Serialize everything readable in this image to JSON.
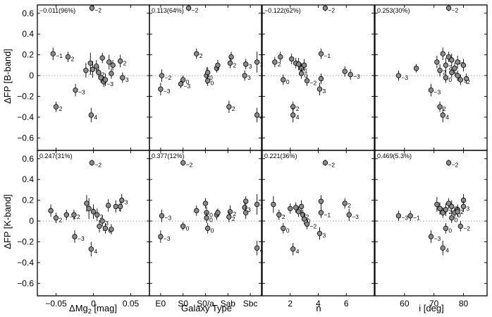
{
  "chart_data": {
    "type": "scatter",
    "ylabels": [
      "ΔFP [B-band]",
      "ΔFP [K-band]"
    ],
    "yticks": [
      "0.6",
      "0.4",
      "0.2",
      "0",
      "−0.2",
      "−0.4",
      "−0.6"
    ],
    "ylim": [
      -0.72,
      0.68
    ],
    "columns": [
      {
        "xlabel": "ΔMg",
        "xlabel_sub": "2",
        "xlabel_unit": " [mag]",
        "xlim": [
          -0.075,
          0.075
        ],
        "xticks": [
          {
            "v": -0.05,
            "t": "−0.05"
          },
          {
            "v": 0,
            "t": "0"
          },
          {
            "v": 0.05,
            "t": "0.05"
          }
        ]
      },
      {
        "xlabel": "Galaxy Type",
        "xlim": [
          -1,
          9
        ],
        "xticks": [
          {
            "v": 0,
            "t": "E0"
          },
          {
            "v": 2,
            "t": "S0"
          },
          {
            "v": 4,
            "t": "S0/a"
          },
          {
            "v": 6,
            "t": "Sab"
          },
          {
            "v": 8,
            "t": "Sbc"
          }
        ]
      },
      {
        "xlabel": "n",
        "xlim": [
          0,
          8
        ],
        "xticks": [
          {
            "v": 2,
            "t": "2"
          },
          {
            "v": 4,
            "t": "4"
          },
          {
            "v": 6,
            "t": "6"
          }
        ]
      },
      {
        "xlabel": "i [deg]",
        "xlim": [
          50,
          88
        ],
        "xticks": [
          {
            "v": 60,
            "t": "60"
          },
          {
            "v": 70,
            "t": "70"
          },
          {
            "v": 80,
            "t": "80"
          }
        ]
      }
    ],
    "panels": [
      {
        "band": "B",
        "col": 0,
        "corr": "−0.011(96%)",
        "points": [
          {
            "x": -0.054,
            "y": 0.21,
            "e": 0.06,
            "l": "−1"
          },
          {
            "x": -0.034,
            "y": 0.18,
            "e": 0.05,
            "l": "2"
          },
          {
            "x": -0.05,
            "y": -0.3,
            "e": 0.05,
            "l": "2"
          },
          {
            "x": -0.024,
            "y": -0.14,
            "e": 0.06,
            "l": "−3"
          },
          {
            "x": -0.003,
            "y": -0.38,
            "e": 0.07,
            "l": "4"
          },
          {
            "x": -0.002,
            "y": 0.65,
            "e": 0.03,
            "l": "−2"
          },
          {
            "x": -0.01,
            "y": 0.05,
            "e": 0.07,
            "l": "1"
          },
          {
            "x": -0.004,
            "y": 0.12,
            "e": 0.1,
            "l": ""
          },
          {
            "x": -0.001,
            "y": 0.06,
            "e": 0.08,
            "l": "3"
          },
          {
            "x": 0.004,
            "y": 0.09,
            "e": 0.06,
            "l": ""
          },
          {
            "x": 0.007,
            "y": 0.03,
            "e": 0.06,
            "l": "2"
          },
          {
            "x": 0.01,
            "y": -0.02,
            "e": 0.05,
            "l": "0"
          },
          {
            "x": 0.014,
            "y": -0.06,
            "e": 0.05,
            "l": "−3"
          },
          {
            "x": 0.012,
            "y": 0.17,
            "e": 0.05,
            "l": ""
          },
          {
            "x": 0.016,
            "y": -0.04,
            "e": 0.06,
            "l": ""
          },
          {
            "x": 0.021,
            "y": 0.13,
            "e": 0.07,
            "l": ""
          },
          {
            "x": 0.026,
            "y": 0.1,
            "e": 0.05,
            "l": ""
          },
          {
            "x": 0.036,
            "y": 0.14,
            "e": 0.06,
            "l": "2"
          },
          {
            "x": 0.039,
            "y": -0.02,
            "e": 0.05,
            "l": "3"
          },
          {
            "x": 0.024,
            "y": 0.02,
            "e": 0.05,
            "l": ""
          }
        ]
      },
      {
        "band": "B",
        "col": 1,
        "corr": "0.113(64%)",
        "points": [
          {
            "x": 2.5,
            "y": 0.65,
            "e": 0.03,
            "l": "−2"
          },
          {
            "x": 0.1,
            "y": 0.0,
            "e": 0.06,
            "l": "−2"
          },
          {
            "x": 0.0,
            "y": -0.13,
            "e": 0.06,
            "l": "−3"
          },
          {
            "x": 2.0,
            "y": -0.04,
            "e": 0.04,
            "l": "0"
          },
          {
            "x": 1.8,
            "y": -0.08,
            "e": 0.04,
            "l": "−3"
          },
          {
            "x": 3.2,
            "y": 0.21,
            "e": 0.05,
            "l": "2"
          },
          {
            "x": 4.1,
            "y": 0.0,
            "e": 0.08,
            "l": "0"
          },
          {
            "x": 4.2,
            "y": 0.03,
            "e": 0.05,
            "l": ""
          },
          {
            "x": 4.2,
            "y": -0.05,
            "e": 0.05,
            "l": "0"
          },
          {
            "x": 5.0,
            "y": 0.07,
            "e": 0.04,
            "l": ""
          },
          {
            "x": 5.1,
            "y": 0.1,
            "e": 0.05,
            "l": ""
          },
          {
            "x": 6.3,
            "y": 0.18,
            "e": 0.05,
            "l": ""
          },
          {
            "x": 6.2,
            "y": 0.12,
            "e": 0.05,
            "l": "2"
          },
          {
            "x": 6.1,
            "y": -0.3,
            "e": 0.06,
            "l": "2"
          },
          {
            "x": 7.6,
            "y": 0.11,
            "e": 0.05,
            "l": "3"
          },
          {
            "x": 7.5,
            "y": 0.0,
            "e": 0.05,
            "l": "3"
          },
          {
            "x": 8.6,
            "y": 0.13,
            "e": 0.1,
            "l": "1"
          },
          {
            "x": 8.6,
            "y": -0.38,
            "e": 0.07,
            "l": "4"
          }
        ]
      },
      {
        "band": "B",
        "col": 2,
        "corr": "−0.122(62%)",
        "points": [
          {
            "x": 4.5,
            "y": 0.65,
            "e": 0.03,
            "l": "−2"
          },
          {
            "x": 0.9,
            "y": 0.13,
            "e": 0.05,
            "l": "2"
          },
          {
            "x": 1.3,
            "y": 0.18,
            "e": 0.05,
            "l": ""
          },
          {
            "x": 1.5,
            "y": -0.04,
            "e": 0.05,
            "l": "0"
          },
          {
            "x": 2.2,
            "y": -0.3,
            "e": 0.05,
            "l": "2"
          },
          {
            "x": 2.2,
            "y": -0.38,
            "e": 0.07,
            "l": "4"
          },
          {
            "x": 2.1,
            "y": 0.16,
            "e": 0.05,
            "l": ""
          },
          {
            "x": 2.4,
            "y": 0.12,
            "e": 0.05,
            "l": ""
          },
          {
            "x": 2.6,
            "y": 0.11,
            "e": 0.06,
            "l": ""
          },
          {
            "x": 2.8,
            "y": 0.07,
            "e": 0.05,
            "l": "1"
          },
          {
            "x": 2.8,
            "y": 0.02,
            "e": 0.05,
            "l": "0"
          },
          {
            "x": 3.2,
            "y": -0.05,
            "e": 0.05,
            "l": "−2"
          },
          {
            "x": 3.0,
            "y": 0.1,
            "e": 0.06,
            "l": ""
          },
          {
            "x": 4.2,
            "y": 0.21,
            "e": 0.05,
            "l": "−1"
          },
          {
            "x": 4.2,
            "y": -0.03,
            "e": 0.05,
            "l": ""
          },
          {
            "x": 4.1,
            "y": -0.13,
            "e": 0.06,
            "l": "3"
          },
          {
            "x": 5.9,
            "y": 0.04,
            "e": 0.05,
            "l": ""
          },
          {
            "x": 6.3,
            "y": 0.01,
            "e": 0.05,
            "l": "−3"
          }
        ]
      },
      {
        "band": "B",
        "col": 3,
        "corr": "0.253(30%)",
        "points": [
          {
            "x": 75,
            "y": 0.65,
            "e": 0.03,
            "l": "−2"
          },
          {
            "x": 58,
            "y": 0.0,
            "e": 0.05,
            "l": "−3"
          },
          {
            "x": 64,
            "y": 0.07,
            "e": 0.04,
            "l": ""
          },
          {
            "x": 69,
            "y": -0.14,
            "e": 0.06,
            "l": "−3"
          },
          {
            "x": 71,
            "y": 0.13,
            "e": 0.06,
            "l": ""
          },
          {
            "x": 72,
            "y": -0.3,
            "e": 0.05,
            "l": "2"
          },
          {
            "x": 73,
            "y": -0.38,
            "e": 0.07,
            "l": "4"
          },
          {
            "x": 72,
            "y": 0.05,
            "e": 0.06,
            "l": "2"
          },
          {
            "x": 73,
            "y": 0.21,
            "e": 0.06,
            "l": ""
          },
          {
            "x": 74,
            "y": 0.1,
            "e": 0.07,
            "l": "2"
          },
          {
            "x": 74,
            "y": -0.02,
            "e": 0.05,
            "l": "0"
          },
          {
            "x": 75,
            "y": 0.18,
            "e": 0.05,
            "l": ""
          },
          {
            "x": 76,
            "y": 0.15,
            "e": 0.06,
            "l": "−1"
          },
          {
            "x": 76,
            "y": 0.03,
            "e": 0.05,
            "l": "0"
          },
          {
            "x": 77,
            "y": 0.07,
            "e": 0.05,
            "l": ""
          },
          {
            "x": 78,
            "y": 0.13,
            "e": 0.06,
            "l": "3"
          },
          {
            "x": 79,
            "y": -0.04,
            "e": 0.05,
            "l": "−2"
          },
          {
            "x": 80,
            "y": 0.1,
            "e": 0.06,
            "l": ""
          },
          {
            "x": 81,
            "y": -0.03,
            "e": 0.05,
            "l": ""
          },
          {
            "x": 78,
            "y": 0.0,
            "e": 0.05,
            "l": ""
          }
        ]
      },
      {
        "band": "K",
        "col": 0,
        "corr": "0.247(31%)",
        "points": [
          {
            "x": -0.002,
            "y": 0.56,
            "e": 0.03,
            "l": "−2"
          },
          {
            "x": -0.057,
            "y": 0.1,
            "e": 0.06,
            "l": ""
          },
          {
            "x": -0.05,
            "y": 0.03,
            "e": 0.05,
            "l": "2"
          },
          {
            "x": -0.036,
            "y": 0.06,
            "e": 0.05,
            "l": "−1"
          },
          {
            "x": -0.026,
            "y": 0.06,
            "e": 0.05,
            "l": "2"
          },
          {
            "x": -0.025,
            "y": -0.15,
            "e": 0.06,
            "l": "−3"
          },
          {
            "x": -0.003,
            "y": -0.27,
            "e": 0.07,
            "l": "4"
          },
          {
            "x": -0.009,
            "y": 0.17,
            "e": 0.08,
            "l": ""
          },
          {
            "x": -0.006,
            "y": 0.12,
            "e": 0.1,
            "l": "3"
          },
          {
            "x": 0.0,
            "y": 0.09,
            "e": 0.07,
            "l": ""
          },
          {
            "x": 0.005,
            "y": 0.06,
            "e": 0.06,
            "l": "2"
          },
          {
            "x": 0.008,
            "y": -0.05,
            "e": 0.06,
            "l": "1"
          },
          {
            "x": 0.012,
            "y": 0.0,
            "e": 0.05,
            "l": "3"
          },
          {
            "x": 0.016,
            "y": -0.07,
            "e": 0.05,
            "l": "0"
          },
          {
            "x": 0.02,
            "y": 0.15,
            "e": 0.06,
            "l": ""
          },
          {
            "x": 0.024,
            "y": -0.08,
            "e": 0.05,
            "l": ""
          },
          {
            "x": 0.03,
            "y": 0.14,
            "e": 0.06,
            "l": "2"
          },
          {
            "x": 0.038,
            "y": 0.2,
            "e": 0.06,
            "l": "3"
          },
          {
            "x": 0.036,
            "y": 0.14,
            "e": 0.05,
            "l": ""
          }
        ]
      },
      {
        "band": "K",
        "col": 1,
        "corr": "0.377(12%)",
        "points": [
          {
            "x": 2.0,
            "y": 0.56,
            "e": 0.03,
            "l": "−2"
          },
          {
            "x": 0.1,
            "y": 0.05,
            "e": 0.06,
            "l": "−3"
          },
          {
            "x": 0.0,
            "y": -0.15,
            "e": 0.06,
            "l": "−3"
          },
          {
            "x": 2.0,
            "y": -0.05,
            "e": 0.04,
            "l": "0"
          },
          {
            "x": 3.2,
            "y": 0.1,
            "e": 0.05,
            "l": ""
          },
          {
            "x": 4.0,
            "y": 0.17,
            "e": 0.05,
            "l": ""
          },
          {
            "x": 4.1,
            "y": 0.08,
            "e": 0.06,
            "l": "0"
          },
          {
            "x": 4.1,
            "y": 0.03,
            "e": 0.05,
            "l": "0"
          },
          {
            "x": 4.2,
            "y": -0.07,
            "e": 0.05,
            "l": "0"
          },
          {
            "x": 5.0,
            "y": 0.06,
            "e": 0.05,
            "l": ""
          },
          {
            "x": 5.1,
            "y": 0.08,
            "e": 0.04,
            "l": ""
          },
          {
            "x": 6.2,
            "y": 0.09,
            "e": 0.06,
            "l": "2"
          },
          {
            "x": 6.1,
            "y": 0.04,
            "e": 0.05,
            "l": "2"
          },
          {
            "x": 7.6,
            "y": 0.19,
            "e": 0.05,
            "l": ""
          },
          {
            "x": 7.5,
            "y": 0.13,
            "e": 0.05,
            "l": "3"
          },
          {
            "x": 7.6,
            "y": 0.08,
            "e": 0.06,
            "l": ""
          },
          {
            "x": 8.6,
            "y": 0.16,
            "e": 0.1,
            "l": "1"
          },
          {
            "x": 8.6,
            "y": -0.26,
            "e": 0.07,
            "l": "4"
          }
        ]
      },
      {
        "band": "K",
        "col": 2,
        "corr": "0.221(36%)",
        "points": [
          {
            "x": 4.5,
            "y": 0.56,
            "e": 0.03,
            "l": "−2"
          },
          {
            "x": 0.8,
            "y": 0.16,
            "e": 0.08,
            "l": ""
          },
          {
            "x": 1.2,
            "y": 0.06,
            "e": 0.05,
            "l": "2"
          },
          {
            "x": 1.5,
            "y": -0.07,
            "e": 0.05,
            "l": "0"
          },
          {
            "x": 2.0,
            "y": 0.12,
            "e": 0.05,
            "l": ""
          },
          {
            "x": 2.2,
            "y": -0.27,
            "e": 0.06,
            "l": "4"
          },
          {
            "x": 2.4,
            "y": 0.13,
            "e": 0.05,
            "l": ""
          },
          {
            "x": 2.6,
            "y": 0.09,
            "e": 0.05,
            "l": "1"
          },
          {
            "x": 2.8,
            "y": 0.14,
            "e": 0.06,
            "l": ""
          },
          {
            "x": 2.9,
            "y": 0.06,
            "e": 0.05,
            "l": "2"
          },
          {
            "x": 3.0,
            "y": 0.02,
            "e": 0.05,
            "l": "0"
          },
          {
            "x": 3.2,
            "y": -0.03,
            "e": 0.05,
            "l": "−2"
          },
          {
            "x": 4.2,
            "y": 0.19,
            "e": 0.06,
            "l": ""
          },
          {
            "x": 4.2,
            "y": 0.08,
            "e": 0.05,
            "l": "−1"
          },
          {
            "x": 4.1,
            "y": -0.12,
            "e": 0.06,
            "l": "3"
          },
          {
            "x": 5.9,
            "y": 0.17,
            "e": 0.05,
            "l": "2"
          },
          {
            "x": 6.2,
            "y": 0.06,
            "e": 0.06,
            "l": "−3"
          }
        ]
      },
      {
        "band": "K",
        "col": 3,
        "corr": "0.469(5.3%)",
        "points": [
          {
            "x": 75,
            "y": 0.56,
            "e": 0.03,
            "l": "−2"
          },
          {
            "x": 58,
            "y": 0.05,
            "e": 0.05,
            "l": "−3"
          },
          {
            "x": 62,
            "y": 0.05,
            "e": 0.05,
            "l": "−1"
          },
          {
            "x": 69,
            "y": -0.15,
            "e": 0.06,
            "l": "−3"
          },
          {
            "x": 71,
            "y": 0.16,
            "e": 0.07,
            "l": ""
          },
          {
            "x": 72,
            "y": 0.12,
            "e": 0.06,
            "l": "4"
          },
          {
            "x": 73,
            "y": -0.26,
            "e": 0.07,
            "l": "4"
          },
          {
            "x": 73,
            "y": 0.08,
            "e": 0.05,
            "l": ""
          },
          {
            "x": 74,
            "y": 0.11,
            "e": 0.06,
            "l": "2"
          },
          {
            "x": 74,
            "y": -0.07,
            "e": 0.05,
            "l": "0"
          },
          {
            "x": 75,
            "y": 0.17,
            "e": 0.05,
            "l": ""
          },
          {
            "x": 76,
            "y": 0.14,
            "e": 0.06,
            "l": "3"
          },
          {
            "x": 76,
            "y": 0.03,
            "e": 0.05,
            "l": "0"
          },
          {
            "x": 77,
            "y": 0.08,
            "e": 0.05,
            "l": "0"
          },
          {
            "x": 78,
            "y": 0.11,
            "e": 0.05,
            "l": "2"
          },
          {
            "x": 79,
            "y": -0.05,
            "e": 0.05,
            "l": "−2"
          },
          {
            "x": 80,
            "y": 0.2,
            "e": 0.06,
            "l": ""
          },
          {
            "x": 80,
            "y": 0.14,
            "e": 0.05,
            "l": "3"
          },
          {
            "x": 78,
            "y": 0.09,
            "e": 0.05,
            "l": ""
          }
        ]
      }
    ]
  }
}
